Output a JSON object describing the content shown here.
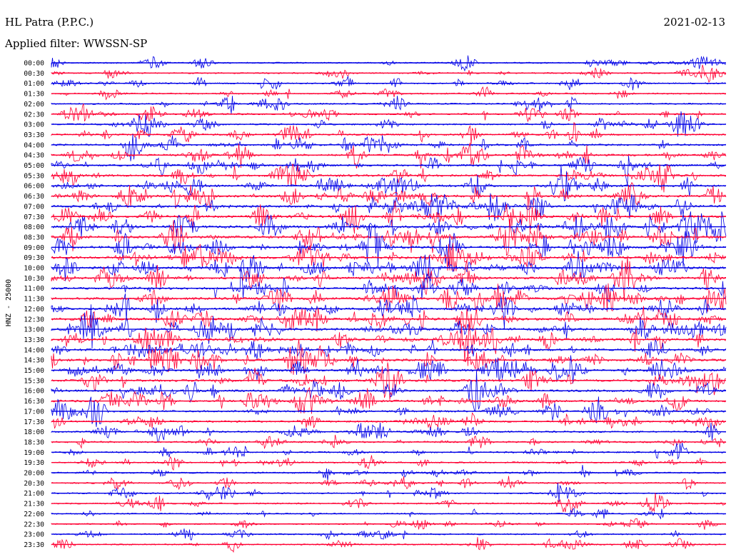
{
  "header": {
    "station": "HL Patra (P.P.C.)",
    "date": "2021-02-13",
    "filter": "Applied filter: WWSSN-SP"
  },
  "chart_data": {
    "type": "line",
    "chart_kind": "helicorder",
    "channel_label": "HNZ - 25000",
    "row_labels": [
      "00:00",
      "00:30",
      "01:00",
      "01:30",
      "02:00",
      "02:30",
      "03:00",
      "03:30",
      "04:00",
      "04:30",
      "05:00",
      "05:30",
      "06:00",
      "06:30",
      "07:00",
      "07:30",
      "08:00",
      "08:30",
      "09:00",
      "09:30",
      "10:00",
      "10:30",
      "11:00",
      "11:30",
      "12:00",
      "12:30",
      "13:00",
      "13:30",
      "14:00",
      "14:30",
      "15:00",
      "15:30",
      "16:00",
      "16:30",
      "17:00",
      "17:30",
      "18:00",
      "18:30",
      "19:00",
      "19:30",
      "20:00",
      "20:30",
      "21:00",
      "21:30",
      "22:00",
      "22:30",
      "23:00",
      "23:30"
    ],
    "series_colors": [
      "#0000e6",
      "#ff0033"
    ],
    "activity_level": [
      0.25,
      0.25,
      0.3,
      0.3,
      0.35,
      0.4,
      0.4,
      0.45,
      0.55,
      0.6,
      0.65,
      0.7,
      0.75,
      0.8,
      0.85,
      0.85,
      0.9,
      0.9,
      0.9,
      0.9,
      0.85,
      0.85,
      0.85,
      0.85,
      0.85,
      0.85,
      0.85,
      0.85,
      0.8,
      0.8,
      0.75,
      0.75,
      0.7,
      0.65,
      0.55,
      0.5,
      0.45,
      0.4,
      0.4,
      0.35,
      0.35,
      0.3,
      0.3,
      0.3,
      0.25,
      0.25,
      0.25,
      0.25
    ],
    "grid": false
  }
}
